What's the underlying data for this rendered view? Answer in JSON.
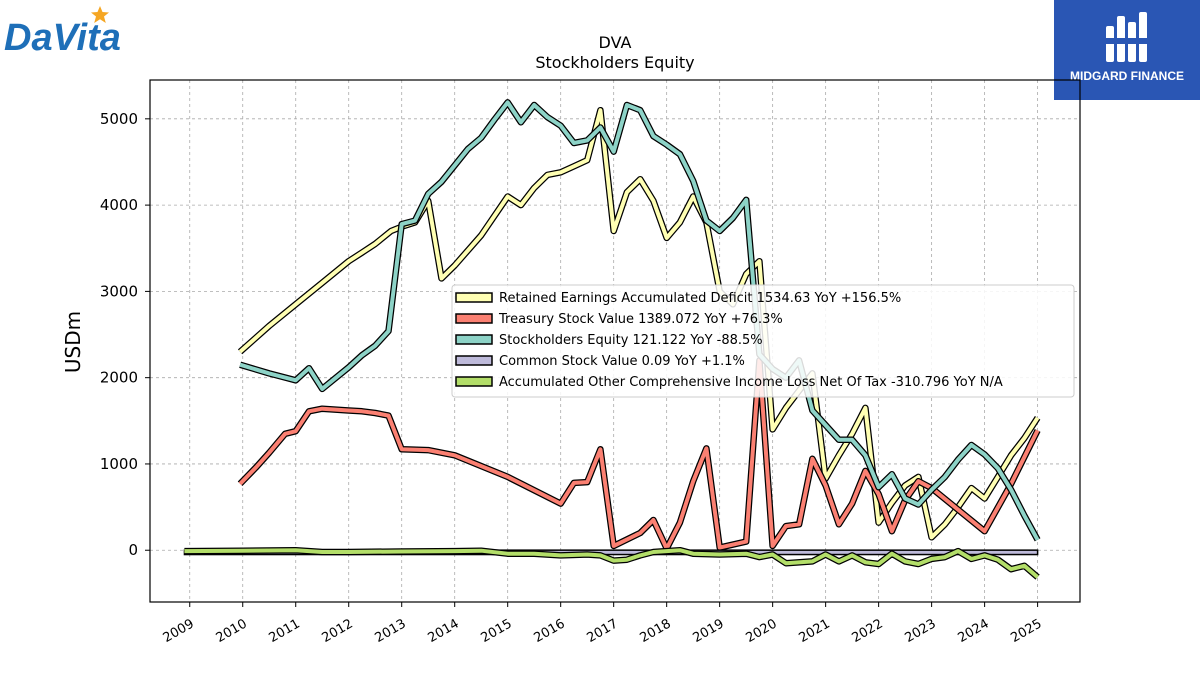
{
  "branding": {
    "company_logo_text": "DaVita",
    "publisher_logo_text": "MIDGARD FINANCE"
  },
  "colors": {
    "retained": "#ffffb3",
    "treasury": "#fb8072",
    "equity": "#8dd3c7",
    "common": "#bebada",
    "aoci": "#b3de69",
    "publisher_bg": "#2a56b4",
    "company_blue": "#1e6fb8",
    "company_star": "#f5a623"
  },
  "chart_data": {
    "type": "line",
    "title": "DVA",
    "subtitle": "Stockholders  Equity",
    "ylabel": "USDm",
    "xlabel": "",
    "ylim": [
      -600,
      5450
    ],
    "xlim": [
      2008.25,
      2025.8
    ],
    "yticks": [
      0,
      1000,
      2000,
      3000,
      4000,
      5000
    ],
    "xticks": [
      2009,
      2010,
      2011,
      2012,
      2013,
      2014,
      2015,
      2016,
      2017,
      2018,
      2019,
      2020,
      2021,
      2022,
      2023,
      2024,
      2025
    ],
    "ytick_labels": [
      "0",
      "1000",
      "2000",
      "3000",
      "4000",
      "5000"
    ],
    "xtick_labels": [
      "2009",
      "2010",
      "2011",
      "2012",
      "2013",
      "2014",
      "2015",
      "2016",
      "2017",
      "2018",
      "2019",
      "2020",
      "2021",
      "2022",
      "2023",
      "2024",
      "2025"
    ],
    "grid": true,
    "legend_position": "center-right",
    "series": [
      {
        "name": "Retained Earnings Accumulated Deficit",
        "legend_label": "Retained Earnings Accumulated Deficit  1534.63 YoY +156.5%",
        "color_key": "retained",
        "points": [
          [
            2009.95,
            2300
          ],
          [
            2010.5,
            2600
          ],
          [
            2011.0,
            2850
          ],
          [
            2011.5,
            3100
          ],
          [
            2012.0,
            3350
          ],
          [
            2012.25,
            3450
          ],
          [
            2012.5,
            3550
          ],
          [
            2012.8,
            3700
          ],
          [
            2013.0,
            3750
          ],
          [
            2013.25,
            3800
          ],
          [
            2013.5,
            4050
          ],
          [
            2013.75,
            3150
          ],
          [
            2014.0,
            3300
          ],
          [
            2014.5,
            3650
          ],
          [
            2015.0,
            4100
          ],
          [
            2015.25,
            4000
          ],
          [
            2015.5,
            4200
          ],
          [
            2015.75,
            4350
          ],
          [
            2016.0,
            4380
          ],
          [
            2016.25,
            4450
          ],
          [
            2016.5,
            4520
          ],
          [
            2016.75,
            5100
          ],
          [
            2017.0,
            3700
          ],
          [
            2017.25,
            4150
          ],
          [
            2017.5,
            4300
          ],
          [
            2017.75,
            4050
          ],
          [
            2018.0,
            3620
          ],
          [
            2018.25,
            3800
          ],
          [
            2018.5,
            4100
          ],
          [
            2018.75,
            3800
          ],
          [
            2019.0,
            3000
          ],
          [
            2019.25,
            2850
          ],
          [
            2019.5,
            3200
          ],
          [
            2019.75,
            3350
          ],
          [
            2020.0,
            1400
          ],
          [
            2020.25,
            1650
          ],
          [
            2020.5,
            1850
          ],
          [
            2020.75,
            2050
          ],
          [
            2021.0,
            830
          ],
          [
            2021.25,
            1100
          ],
          [
            2021.5,
            1350
          ],
          [
            2021.75,
            1650
          ],
          [
            2022.0,
            320
          ],
          [
            2022.25,
            550
          ],
          [
            2022.5,
            750
          ],
          [
            2022.75,
            850
          ],
          [
            2023.0,
            150
          ],
          [
            2023.25,
            300
          ],
          [
            2023.5,
            500
          ],
          [
            2023.75,
            720
          ],
          [
            2024.0,
            600
          ],
          [
            2024.25,
            850
          ],
          [
            2024.5,
            1100
          ],
          [
            2024.75,
            1300
          ],
          [
            2025.0,
            1535
          ]
        ]
      },
      {
        "name": "Treasury Stock Value",
        "legend_label": "Treasury Stock Value  1389.072 YoY +76.3%",
        "color_key": "treasury",
        "points": [
          [
            2009.95,
            770
          ],
          [
            2010.25,
            960
          ],
          [
            2010.5,
            1130
          ],
          [
            2010.8,
            1350
          ],
          [
            2011.0,
            1380
          ],
          [
            2011.25,
            1610
          ],
          [
            2011.5,
            1640
          ],
          [
            2011.75,
            1630
          ],
          [
            2012.0,
            1620
          ],
          [
            2012.25,
            1610
          ],
          [
            2012.5,
            1590
          ],
          [
            2012.75,
            1560
          ],
          [
            2013.0,
            1170
          ],
          [
            2013.5,
            1160
          ],
          [
            2014.0,
            1100
          ],
          [
            2015.0,
            850
          ],
          [
            2016.0,
            540
          ],
          [
            2016.25,
            780
          ],
          [
            2016.5,
            790
          ],
          [
            2016.75,
            1170
          ],
          [
            2017.0,
            50
          ],
          [
            2017.5,
            200
          ],
          [
            2017.75,
            350
          ],
          [
            2018.0,
            20
          ],
          [
            2018.25,
            320
          ],
          [
            2018.5,
            800
          ],
          [
            2018.75,
            1180
          ],
          [
            2019.0,
            30
          ],
          [
            2019.5,
            100
          ],
          [
            2019.75,
            2200
          ],
          [
            2020.0,
            50
          ],
          [
            2020.25,
            280
          ],
          [
            2020.5,
            300
          ],
          [
            2020.75,
            1060
          ],
          [
            2021.0,
            750
          ],
          [
            2021.25,
            300
          ],
          [
            2021.5,
            540
          ],
          [
            2021.75,
            920
          ],
          [
            2022.0,
            650
          ],
          [
            2022.25,
            220
          ],
          [
            2022.5,
            580
          ],
          [
            2022.75,
            800
          ],
          [
            2023.0,
            720
          ],
          [
            2024.0,
            220
          ],
          [
            2024.5,
            770
          ],
          [
            2025.0,
            1389
          ]
        ]
      },
      {
        "name": "Stockholders Equity",
        "legend_label": "Stockholders Equity  121.122 YoY -88.5%",
        "color_key": "equity",
        "points": [
          [
            2009.95,
            2150
          ],
          [
            2010.5,
            2050
          ],
          [
            2011.0,
            1970
          ],
          [
            2011.25,
            2110
          ],
          [
            2011.5,
            1870
          ],
          [
            2012.0,
            2120
          ],
          [
            2012.25,
            2260
          ],
          [
            2012.5,
            2370
          ],
          [
            2012.75,
            2540
          ],
          [
            2013.0,
            3780
          ],
          [
            2013.25,
            3820
          ],
          [
            2013.5,
            4130
          ],
          [
            2013.75,
            4270
          ],
          [
            2014.0,
            4460
          ],
          [
            2014.25,
            4650
          ],
          [
            2014.5,
            4780
          ],
          [
            2014.75,
            4990
          ],
          [
            2015.0,
            5190
          ],
          [
            2015.25,
            4960
          ],
          [
            2015.5,
            5160
          ],
          [
            2015.75,
            5020
          ],
          [
            2016.0,
            4920
          ],
          [
            2016.25,
            4720
          ],
          [
            2016.5,
            4750
          ],
          [
            2016.75,
            4900
          ],
          [
            2017.0,
            4620
          ],
          [
            2017.25,
            5160
          ],
          [
            2017.5,
            5100
          ],
          [
            2017.75,
            4800
          ],
          [
            2018.0,
            4700
          ],
          [
            2018.25,
            4590
          ],
          [
            2018.5,
            4280
          ],
          [
            2018.75,
            3820
          ],
          [
            2019.0,
            3700
          ],
          [
            2019.25,
            3850
          ],
          [
            2019.5,
            4060
          ],
          [
            2019.75,
            2270
          ],
          [
            2020.0,
            2100
          ],
          [
            2020.25,
            2000
          ],
          [
            2020.5,
            2200
          ],
          [
            2020.75,
            1620
          ],
          [
            2021.0,
            1450
          ],
          [
            2021.25,
            1280
          ],
          [
            2021.5,
            1280
          ],
          [
            2021.75,
            1100
          ],
          [
            2022.0,
            730
          ],
          [
            2022.25,
            880
          ],
          [
            2022.5,
            600
          ],
          [
            2022.75,
            530
          ],
          [
            2023.0,
            700
          ],
          [
            2023.25,
            850
          ],
          [
            2023.5,
            1050
          ],
          [
            2023.75,
            1220
          ],
          [
            2024.0,
            1110
          ],
          [
            2024.25,
            950
          ],
          [
            2024.5,
            700
          ],
          [
            2024.75,
            400
          ],
          [
            2025.0,
            121
          ]
        ]
      },
      {
        "name": "Common Stock Value",
        "legend_label": "Common Stock Value  0.09 YoY +1.1%",
        "color_key": "common",
        "points": [
          [
            2008.9,
            1
          ],
          [
            2025.0,
            0.09
          ]
        ],
        "render": "band",
        "band_bottom": -50
      },
      {
        "name": "Accumulated Other Comprehensive Income Loss Net Of Tax",
        "legend_label": "Accumulated Other Comprehensive Income Loss Net Of Tax  -310.796 YoY N/A",
        "color_key": "aoci",
        "points": [
          [
            2008.9,
            -10
          ],
          [
            2010.0,
            -5
          ],
          [
            2011.0,
            0
          ],
          [
            2011.5,
            -20
          ],
          [
            2012.0,
            -20
          ],
          [
            2013.0,
            -15
          ],
          [
            2014.0,
            -10
          ],
          [
            2014.5,
            -5
          ],
          [
            2015.0,
            -40
          ],
          [
            2015.5,
            -40
          ],
          [
            2016.0,
            -60
          ],
          [
            2016.5,
            -50
          ],
          [
            2016.75,
            -60
          ],
          [
            2017.0,
            -120
          ],
          [
            2017.25,
            -110
          ],
          [
            2017.5,
            -60
          ],
          [
            2017.75,
            -20
          ],
          [
            2018.0,
            -10
          ],
          [
            2018.25,
            0
          ],
          [
            2018.5,
            -40
          ],
          [
            2019.0,
            -50
          ],
          [
            2019.5,
            -40
          ],
          [
            2019.75,
            -80
          ],
          [
            2020.0,
            -50
          ],
          [
            2020.25,
            -150
          ],
          [
            2020.75,
            -130
          ],
          [
            2021.0,
            -50
          ],
          [
            2021.25,
            -130
          ],
          [
            2021.5,
            -60
          ],
          [
            2021.75,
            -140
          ],
          [
            2022.0,
            -160
          ],
          [
            2022.25,
            -40
          ],
          [
            2022.5,
            -130
          ],
          [
            2022.75,
            -160
          ],
          [
            2023.0,
            -100
          ],
          [
            2023.25,
            -80
          ],
          [
            2023.5,
            -10
          ],
          [
            2023.75,
            -100
          ],
          [
            2024.0,
            -60
          ],
          [
            2024.25,
            -110
          ],
          [
            2024.5,
            -220
          ],
          [
            2024.75,
            -180
          ],
          [
            2025.0,
            -311
          ]
        ]
      }
    ]
  }
}
